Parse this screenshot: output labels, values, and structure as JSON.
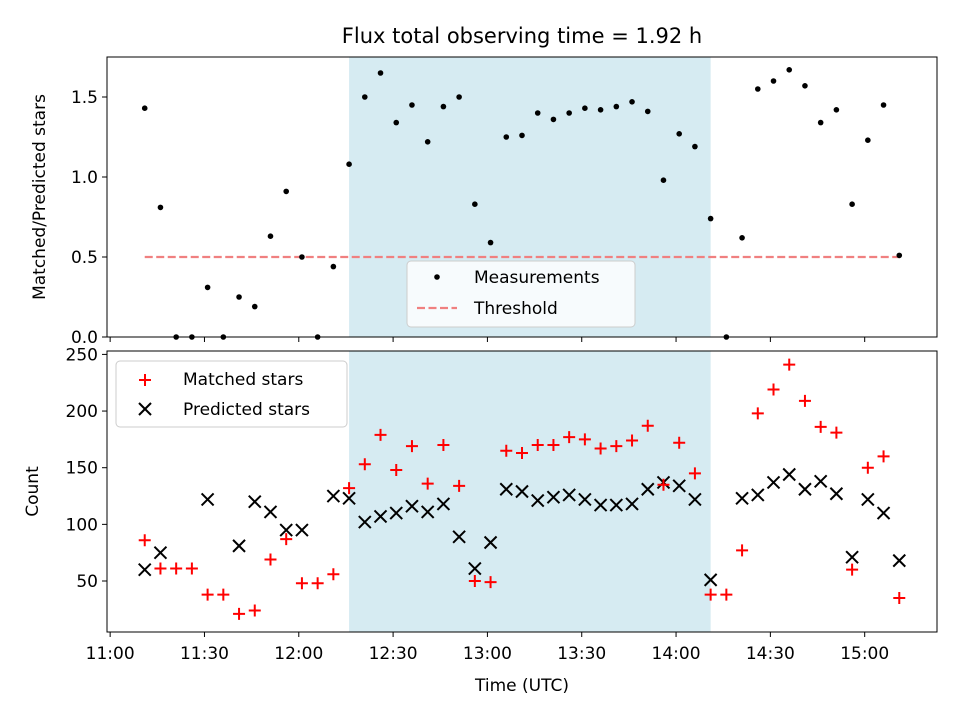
{
  "chart_data": {
    "type": "scatter",
    "title": "Flux total observing time = 1.92 h",
    "xlabel": "Time (UTC)",
    "x_ticks": [
      "11:00",
      "11:30",
      "12:00",
      "12:30",
      "13:00",
      "13:30",
      "14:00",
      "14:30",
      "15:00"
    ],
    "x_tick_values": [
      "11:00",
      "11:30",
      "12:00",
      "12:30",
      "13:00",
      "13:30",
      "14:00",
      "14:30",
      "15:00"
    ],
    "xlim": [
      "10:59",
      "15:23"
    ],
    "shaded_span": {
      "start": "12:16",
      "end": "14:11",
      "color": "#add8e6"
    },
    "times": [
      "11:11",
      "11:16",
      "11:21",
      "11:26",
      "11:31",
      "11:36",
      "11:41",
      "11:46",
      "11:51",
      "11:56",
      "12:01",
      "12:06",
      "12:11",
      "12:16",
      "12:21",
      "12:26",
      "12:31",
      "12:36",
      "12:41",
      "12:46",
      "12:51",
      "12:56",
      "13:01",
      "13:06",
      "13:11",
      "13:16",
      "13:21",
      "13:26",
      "13:31",
      "13:36",
      "13:41",
      "13:46",
      "13:51",
      "13:56",
      "14:01",
      "14:06",
      "14:11",
      "14:16",
      "14:21",
      "14:26",
      "14:31",
      "14:36",
      "14:41",
      "14:46",
      "14:51",
      "14:56",
      "15:01",
      "15:06",
      "15:11"
    ],
    "panels": [
      {
        "ylabel": "Matched/Predicted stars",
        "ylim": [
          0,
          1.75
        ],
        "y_ticks": [
          "0.0",
          "0.5",
          "1.0",
          "1.5"
        ],
        "y_tick_values": [
          0,
          0.5,
          1.0,
          1.5
        ],
        "legend_position": "lower-center",
        "series": [
          {
            "name": "Measurements",
            "marker": "dot",
            "color": "#000000",
            "values": [
              1.43,
              0.81,
              0.0,
              0.0,
              0.31,
              0.0,
              0.25,
              0.19,
              0.63,
              0.91,
              0.5,
              0.0,
              0.44,
              1.08,
              1.5,
              1.65,
              1.34,
              1.45,
              1.22,
              1.44,
              1.5,
              0.83,
              0.59,
              1.25,
              1.26,
              1.4,
              1.36,
              1.4,
              1.43,
              1.42,
              1.44,
              1.47,
              1.41,
              0.98,
              1.27,
              1.19,
              0.74,
              0.0,
              0.62,
              1.55,
              1.6,
              1.67,
              1.57,
              1.34,
              1.42,
              0.83,
              1.23,
              1.45,
              0.51
            ]
          },
          {
            "name": "Threshold",
            "marker": "dashed-line",
            "color": "#f08080",
            "value": 0.5,
            "x_range": [
              "11:11",
              "15:11"
            ]
          }
        ]
      },
      {
        "ylabel": "Count",
        "ylim": [
          5,
          253
        ],
        "y_ticks": [
          "50",
          "100",
          "150",
          "200",
          "250"
        ],
        "y_tick_values": [
          50,
          100,
          150,
          200,
          250
        ],
        "legend_position": "upper-left",
        "series": [
          {
            "name": "Matched stars",
            "marker": "plus",
            "color": "#ff0000",
            "values": [
              86,
              61,
              61,
              61,
              38,
              38,
              21,
              24,
              69,
              87,
              48,
              48,
              56,
              132,
              153,
              179,
              148,
              169,
              136,
              170,
              134,
              50,
              49,
              165,
              163,
              170,
              170,
              177,
              175,
              167,
              169,
              174,
              187,
              135,
              172,
              145,
              38,
              38,
              77,
              198,
              219,
              241,
              209,
              186,
              181,
              60,
              150,
              160,
              35
            ]
          },
          {
            "name": "Predicted stars",
            "marker": "x",
            "color": "#000000",
            "values": [
              60,
              75,
              null,
              null,
              122,
              null,
              81,
              120,
              111,
              95,
              95,
              null,
              125,
              123,
              102,
              107,
              110,
              116,
              111,
              118,
              89,
              61,
              84,
              131,
              129,
              121,
              124,
              126,
              122,
              117,
              117,
              118,
              131,
              137,
              134,
              122,
              51,
              null,
              123,
              126,
              137,
              144,
              131,
              138,
              127,
              71,
              122,
              110,
              68
            ]
          }
        ]
      }
    ]
  }
}
